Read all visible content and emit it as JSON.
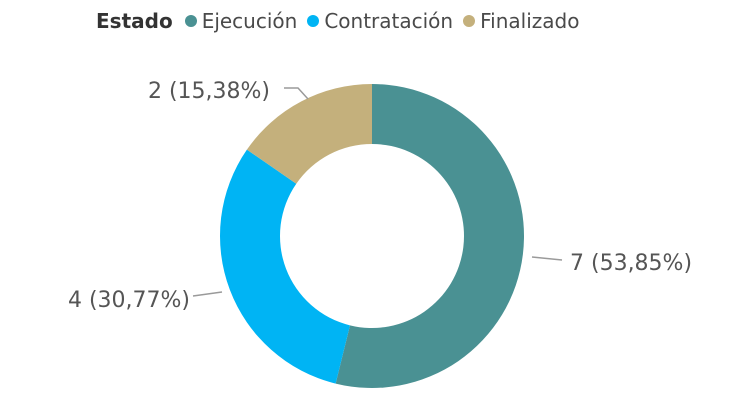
{
  "chart_data": {
    "type": "pie",
    "donut": true,
    "legend": {
      "title": "Estado",
      "placement": "top",
      "items": [
        {
          "name": "Ejecución",
          "color": "#4a9193"
        },
        {
          "name": "Contratación",
          "color": "#00b4f4"
        },
        {
          "name": "Finalizado",
          "color": "#c4b07c"
        }
      ]
    },
    "slices": [
      {
        "category": "Ejecución",
        "value": 7,
        "percent": 53.85,
        "label": "7 (53,85%)",
        "color": "#4a9193"
      },
      {
        "category": "Contratación",
        "value": 4,
        "percent": 30.77,
        "label": "4 (30,77%)",
        "color": "#00b4f4"
      },
      {
        "category": "Finalizado",
        "value": 2,
        "percent": 15.38,
        "label": "2 (15,38%)",
        "color": "#c4b07c"
      }
    ]
  }
}
